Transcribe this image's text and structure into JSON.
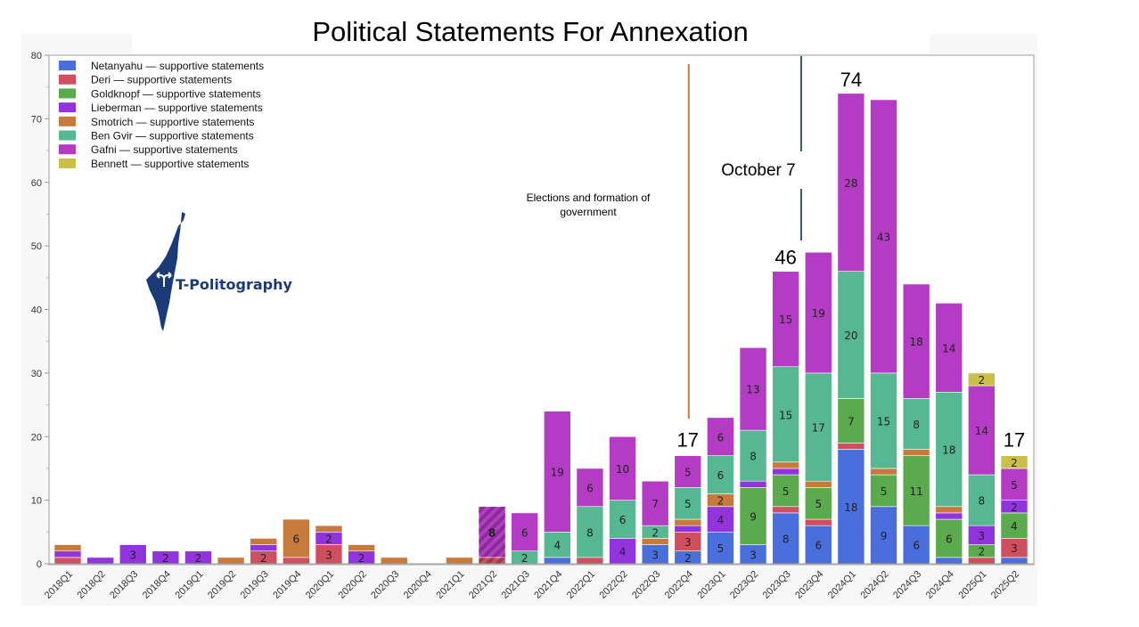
{
  "chart_data": {
    "type": "bar",
    "stacked": true,
    "title": "Political Statements For Annexation",
    "xlabel": "",
    "ylabel": "",
    "ylim": [
      0,
      80
    ],
    "yticks": [
      0,
      10,
      20,
      30,
      40,
      50,
      60,
      70,
      80
    ],
    "grid": false,
    "legend_position": "top-left",
    "categories": [
      "2018Q1",
      "2018Q2",
      "2018Q3",
      "2018Q4",
      "2019Q1",
      "2019Q2",
      "2019Q3",
      "2019Q4",
      "2020Q1",
      "2020Q2",
      "2020Q3",
      "2020Q4",
      "2021Q1",
      "2021Q2",
      "2021Q3",
      "2021Q4",
      "2022Q1",
      "2022Q2",
      "2022Q3",
      "2022Q4",
      "2023Q1",
      "2023Q2",
      "2023Q3",
      "2023Q4",
      "2024Q1",
      "2024Q2",
      "2024Q3",
      "2024Q4",
      "2025Q1",
      "2025Q2"
    ],
    "series": [
      {
        "name": "Netanyahu — supportive statements",
        "color": "#4a6fdc",
        "values": [
          0,
          0,
          0,
          0,
          0,
          0,
          0,
          0,
          0,
          0,
          0,
          0,
          0,
          0,
          0,
          1,
          0,
          0,
          3,
          2,
          5,
          3,
          8,
          6,
          18,
          9,
          6,
          1,
          0,
          1
        ]
      },
      {
        "name": "Deri — supportive statements",
        "color": "#cf4f5e",
        "values": [
          1,
          0,
          0,
          0,
          0,
          0,
          2,
          1,
          3,
          0,
          0,
          0,
          0,
          1,
          0,
          0,
          1,
          0,
          0,
          3,
          0,
          0,
          1,
          1,
          1,
          0,
          0,
          0,
          1,
          3
        ]
      },
      {
        "name": "Goldknopf — supportive statements",
        "color": "#5baa4e",
        "values": [
          0,
          0,
          0,
          0,
          0,
          0,
          0,
          0,
          0,
          0,
          0,
          0,
          0,
          0,
          0,
          0,
          0,
          0,
          0,
          0,
          0,
          9,
          5,
          5,
          7,
          5,
          11,
          6,
          2,
          4
        ]
      },
      {
        "name": "Lieberman — supportive statements",
        "color": "#9234de",
        "values": [
          1,
          1,
          3,
          2,
          2,
          0,
          1,
          0,
          2,
          2,
          0,
          0,
          0,
          0,
          0,
          0,
          0,
          4,
          0,
          1,
          4,
          1,
          1,
          0,
          0,
          0,
          0,
          1,
          3,
          2
        ]
      },
      {
        "name": "Smotrich — supportive statements",
        "color": "#c87a3c",
        "values": [
          1,
          0,
          0,
          0,
          0,
          1,
          1,
          6,
          1,
          1,
          1,
          0,
          1,
          0,
          0,
          0,
          0,
          0,
          1,
          1,
          2,
          0,
          1,
          1,
          0,
          1,
          1,
          1,
          0,
          0
        ]
      },
      {
        "name": "Ben Gvir — supportive statements",
        "color": "#55b892",
        "values": [
          0,
          0,
          0,
          0,
          0,
          0,
          0,
          0,
          0,
          0,
          0,
          0,
          0,
          0,
          2,
          4,
          8,
          6,
          2,
          5,
          6,
          8,
          15,
          17,
          20,
          15,
          8,
          18,
          8,
          0
        ]
      },
      {
        "name": "Gafni — supportive statements",
        "color": "#b43cc4",
        "values": [
          0,
          0,
          0,
          0,
          0,
          0,
          0,
          0,
          0,
          0,
          0,
          0,
          0,
          8,
          6,
          19,
          6,
          10,
          7,
          5,
          6,
          13,
          15,
          19,
          28,
          43,
          18,
          14,
          14,
          5
        ]
      },
      {
        "name": "Bennett — supportive statements",
        "color": "#c9bf49",
        "values": [
          0,
          0,
          0,
          0,
          0,
          0,
          0,
          0,
          0,
          0,
          0,
          0,
          0,
          0,
          0,
          0,
          0,
          0,
          0,
          0,
          0,
          0,
          0,
          0,
          0,
          0,
          0,
          0,
          2,
          2
        ]
      }
    ],
    "hatched_categories": [
      "2021Q2"
    ],
    "segment_labels_min": 2,
    "totals_highlighted": [
      {
        "category": "2022Q4",
        "label": "17"
      },
      {
        "category": "2023Q3",
        "label": "46"
      },
      {
        "category": "2024Q1",
        "label": "74"
      },
      {
        "category": "2025Q2",
        "label": "17"
      }
    ],
    "annotations": [
      {
        "type": "vline",
        "after_category": "2022Q4",
        "color": "#c87a3c",
        "text": "Elections and formation of government"
      },
      {
        "type": "vline",
        "after_category": "2023Q3",
        "color": "#2f5f73",
        "text": "October 7"
      }
    ]
  },
  "logo": {
    "text": "T-Politography",
    "color": "#1a3a78"
  }
}
